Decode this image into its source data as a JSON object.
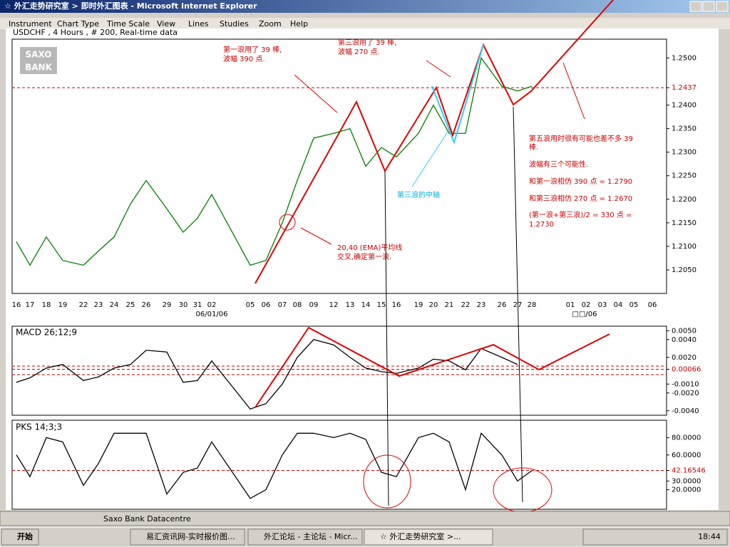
{
  "window": {
    "title": "☆ 外汇走势研究室 > 即时外汇图表 - Microsoft Internet Explorer",
    "menu": [
      "Instrument",
      "Chart Type",
      "Time Scale",
      "View",
      "Lines",
      "Studies",
      "Zoom",
      "Help"
    ]
  },
  "header": "USDCHF , 4 Hours , # 200, Real-time data",
  "logo": [
    "SAXO",
    "BANK"
  ],
  "chart_data": [
    {
      "type": "line",
      "title": "USDCHF",
      "categories": [
        "16",
        "17",
        "18",
        "19",
        "22",
        "23",
        "24",
        "25",
        "26",
        "29",
        "30",
        "31",
        "02",
        "05",
        "06",
        "07",
        "08",
        "09",
        "12",
        "13",
        "14",
        "15",
        "16",
        "19",
        "20",
        "21",
        "22",
        "23",
        "26",
        "27",
        "28",
        "01",
        "02",
        "03",
        "04",
        "05",
        "06"
      ],
      "x_sublabels": [
        "06/01/06",
        "□□/06"
      ],
      "values": [
        1.211,
        1.206,
        1.212,
        1.207,
        1.206,
        1.209,
        1.212,
        1.219,
        1.224,
        1.218,
        1.213,
        1.216,
        1.221,
        1.206,
        1.207,
        1.215,
        1.224,
        1.233,
        1.234,
        1.235,
        1.227,
        1.231,
        1.229,
        1.234,
        1.24,
        1.234,
        1.234,
        1.25,
        1.244,
        1.243,
        1.244,
        null,
        null,
        null,
        null,
        null,
        null
      ],
      "color": "#008000",
      "ylim": [
        1.2,
        1.254
      ],
      "yticks": [
        {
          "value": 1.25,
          "label": "1.2500"
        },
        1.2437,
        {
          "value": 1.24,
          "label": "1.2400"
        },
        {
          "value": 1.235,
          "label": "1.2350"
        },
        {
          "value": 1.23,
          "label": "1.2300"
        },
        {
          "value": 1.225,
          "label": "1.2250"
        },
        {
          "value": 1.22,
          "label": "1.2200"
        },
        {
          "value": 1.215,
          "label": "1.2150"
        },
        {
          "value": 1.21,
          "label": "1.2100"
        },
        {
          "value": 1.205,
          "label": "1.2050"
        }
      ]
    },
    {
      "type": "line",
      "title": "MACD 26;12;9",
      "values": [
        -0.0008,
        -0.0003,
        0.0008,
        0.0012,
        -0.0006,
        -0.0002,
        0.0008,
        0.0012,
        0.0028,
        0.0026,
        -0.0008,
        -0.0006,
        0.0016,
        -0.0038,
        -0.0032,
        -0.001,
        0.002,
        0.004,
        0.0034,
        0.002,
        0.0008,
        0.0004,
        0.0002,
        0.0008,
        0.0018,
        0.0016,
        0.0006,
        0.003,
        0.002,
        0.0012,
        null,
        null,
        null,
        null,
        null,
        null,
        null
      ],
      "color": "#000000",
      "ylim": [
        -0.0045,
        0.0055
      ],
      "yticks": [
        {
          "value": 0.005,
          "label": "0.0050"
        },
        {
          "value": 0.004,
          "label": "0.0040"
        },
        {
          "value": 0.002,
          "label": "0.0020"
        },
        0.00066,
        {
          "value": -0.001,
          "label": "-0.0010"
        },
        {
          "value": -0.002,
          "label": "-0.0020"
        },
        {
          "value": -0.004,
          "label": "-0.0040"
        }
      ]
    },
    {
      "type": "line",
      "title": "PKS 14;3;3",
      "values": [
        60,
        35,
        80,
        75,
        25,
        50,
        85,
        85,
        85,
        15,
        40,
        45,
        75,
        10,
        20,
        60,
        85,
        85,
        80,
        85,
        78,
        40,
        35,
        80,
        85,
        75,
        20,
        85,
        60,
        30,
        42,
        null,
        null,
        null,
        null,
        null,
        null
      ],
      "color": "#000000",
      "ylim": [
        -2.5,
        100
      ],
      "yticks": [
        {
          "value": 80,
          "label": "80.0000"
        },
        {
          "value": 60,
          "label": "60.0000"
        },
        42.16546,
        {
          "value": 30,
          "label": "30.0000"
        },
        {
          "value": 20,
          "label": "20.0000"
        }
      ]
    }
  ],
  "annotations": {
    "wave1": [
      "第一浪用了 39 棒,",
      "波幅 390 点."
    ],
    "wave3": [
      "第三浪用了 39 棒,",
      "波幅 270 点."
    ],
    "wave5": [
      "第五浪用时很有可能也差不多 39",
      "棒."
    ],
    "possibility": "波幅有三个可能性.",
    "option1": "和第一浪相仿 390 点 = 1.2790",
    "option2": "和第三浪相仿 270 点 = 1.2670",
    "option3": [
      "(第一浪+第三浪)/2 = 330 点 =",
      "1.2730"
    ],
    "axis3": "第三浪的中轴",
    "ema": [
      "20,40 (EMA)平均线",
      "交叉,确定第一浪."
    ]
  },
  "status": "Saxo Bank Datacentre",
  "taskbar": {
    "start": "开始",
    "tasks": [
      "易汇资讯网-实时报价图...",
      "外汇论坛 - 主论坛 - Micr...",
      "☆ 外汇走势研究室 >..."
    ],
    "clock": "18:44"
  }
}
